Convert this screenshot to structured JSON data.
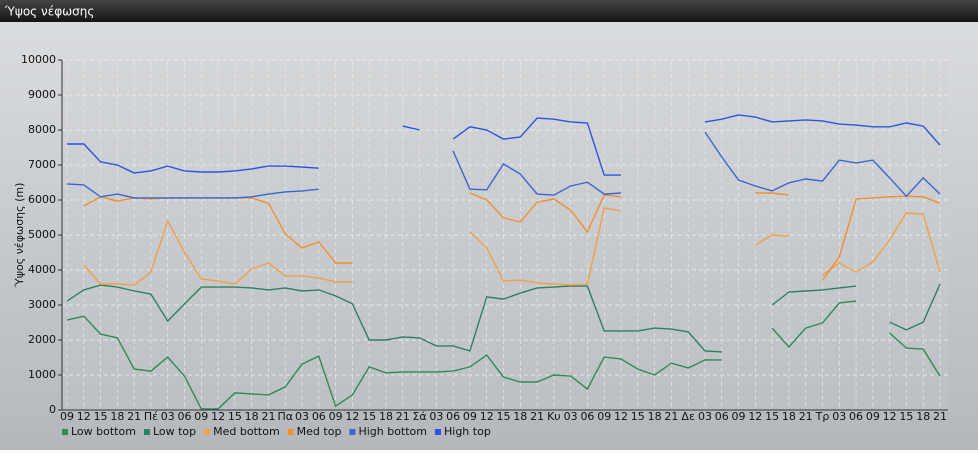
{
  "chart_data": {
    "type": "line",
    "title": "Ύψος νέφωσης",
    "y_label": "Ύψος νέφωσης (m)",
    "categories": [
      "09",
      "12",
      "15",
      "18",
      "21",
      "Πέ",
      "03",
      "06",
      "09",
      "12",
      "15",
      "18",
      "21",
      "Πα",
      "03",
      "06",
      "09",
      "12",
      "15",
      "18",
      "21",
      "Σά",
      "03",
      "06",
      "09",
      "12",
      "15",
      "18",
      "21",
      "Κυ",
      "03",
      "06",
      "09",
      "12",
      "15",
      "18",
      "21",
      "Δε",
      "03",
      "06",
      "09",
      "12",
      "15",
      "18",
      "21",
      "Τρ",
      "03",
      "06",
      "09",
      "12",
      "15",
      "18",
      "21"
    ],
    "ylim": [
      0,
      10000
    ],
    "yticks": [
      0,
      1000,
      2000,
      3000,
      4000,
      5000,
      6000,
      7000,
      8000,
      9000,
      10000
    ],
    "grid": true,
    "series": [
      {
        "name": "Low bottom",
        "color": "#2e8b57",
        "values": [
          2570,
          2680,
          2170,
          2060,
          1170,
          1110,
          1510,
          970,
          30,
          30,
          490,
          460,
          430,
          660,
          1310,
          1540,
          110,
          430,
          1230,
          1060,
          1090,
          1090,
          1090,
          1110,
          1230,
          1570,
          940,
          800,
          800,
          1000,
          970,
          600,
          1510,
          1460,
          1170,
          1000,
          1340,
          1200,
          1430,
          1430,
          null,
          null,
          2340,
          1800,
          2340,
          2490,
          3060,
          3110,
          null,
          2200,
          1770,
          1740,
          970
        ]
      },
      {
        "name": "Low top",
        "color": "#2f8060",
        "values": [
          3110,
          3430,
          3570,
          3510,
          3400,
          3310,
          2540,
          3030,
          3510,
          3510,
          3510,
          3490,
          3430,
          3490,
          3400,
          3430,
          3260,
          3030,
          2000,
          2000,
          2090,
          2060,
          1830,
          1830,
          1690,
          3230,
          3170,
          3340,
          3490,
          3510,
          3540,
          3540,
          2260,
          2260,
          2260,
          2340,
          2310,
          2230,
          1690,
          1660,
          null,
          null,
          3000,
          3370,
          3400,
          3430,
          3490,
          3540,
          null,
          2510,
          2290,
          2510,
          3600
        ]
      },
      {
        "name": "Med bottom",
        "color": "#f0a048",
        "values": [
          null,
          4140,
          3600,
          3600,
          3570,
          3940,
          5400,
          4510,
          3740,
          3690,
          3600,
          4030,
          4200,
          3830,
          3830,
          3770,
          3660,
          3660,
          null,
          null,
          null,
          null,
          null,
          null,
          5090,
          4630,
          3690,
          3710,
          3630,
          3600,
          3570,
          3600,
          5770,
          5690,
          null,
          null,
          null,
          null,
          null,
          null,
          null,
          4710,
          5000,
          4970,
          null,
          3860,
          4200,
          3940,
          4230,
          4860,
          5630,
          5600,
          3940
        ]
      },
      {
        "name": "Med top",
        "color": "#f09030",
        "values": [
          null,
          5830,
          6090,
          5970,
          6060,
          6030,
          6060,
          6060,
          6060,
          6060,
          6060,
          6060,
          5910,
          5030,
          4630,
          4800,
          4200,
          4200,
          null,
          null,
          null,
          null,
          null,
          null,
          6200,
          6000,
          5490,
          5370,
          5940,
          6030,
          5710,
          5090,
          6140,
          6090,
          null,
          null,
          null,
          null,
          null,
          null,
          null,
          6200,
          6200,
          6140,
          null,
          3710,
          4370,
          6030,
          6060,
          6090,
          6110,
          6090,
          5910
        ]
      },
      {
        "name": "High bottom",
        "color": "#3a66d0",
        "values": [
          6460,
          6430,
          6090,
          6170,
          6060,
          6060,
          6060,
          6060,
          6060,
          6060,
          6060,
          6090,
          6170,
          6230,
          6260,
          6310,
          null,
          null,
          null,
          null,
          null,
          null,
          null,
          7400,
          6310,
          6290,
          7030,
          6740,
          6170,
          6140,
          6400,
          6510,
          6170,
          6200,
          null,
          null,
          null,
          null,
          7940,
          7230,
          6570,
          6400,
          6260,
          6490,
          6600,
          6540,
          7140,
          7060,
          7140,
          6630,
          6110,
          6630,
          6170
        ]
      },
      {
        "name": "High top",
        "color": "#2a55e0",
        "values": [
          7600,
          7600,
          7090,
          7000,
          6770,
          6830,
          6970,
          6830,
          6800,
          6800,
          6830,
          6890,
          6970,
          6970,
          6940,
          6910,
          null,
          null,
          null,
          null,
          8110,
          8000,
          null,
          7740,
          8090,
          8000,
          7740,
          7800,
          8340,
          8310,
          8230,
          8200,
          6710,
          6710,
          null,
          null,
          null,
          null,
          8230,
          8310,
          8430,
          8370,
          8230,
          8260,
          8290,
          8260,
          8170,
          8140,
          8090,
          8090,
          8200,
          8110,
          7570
        ]
      }
    ]
  }
}
